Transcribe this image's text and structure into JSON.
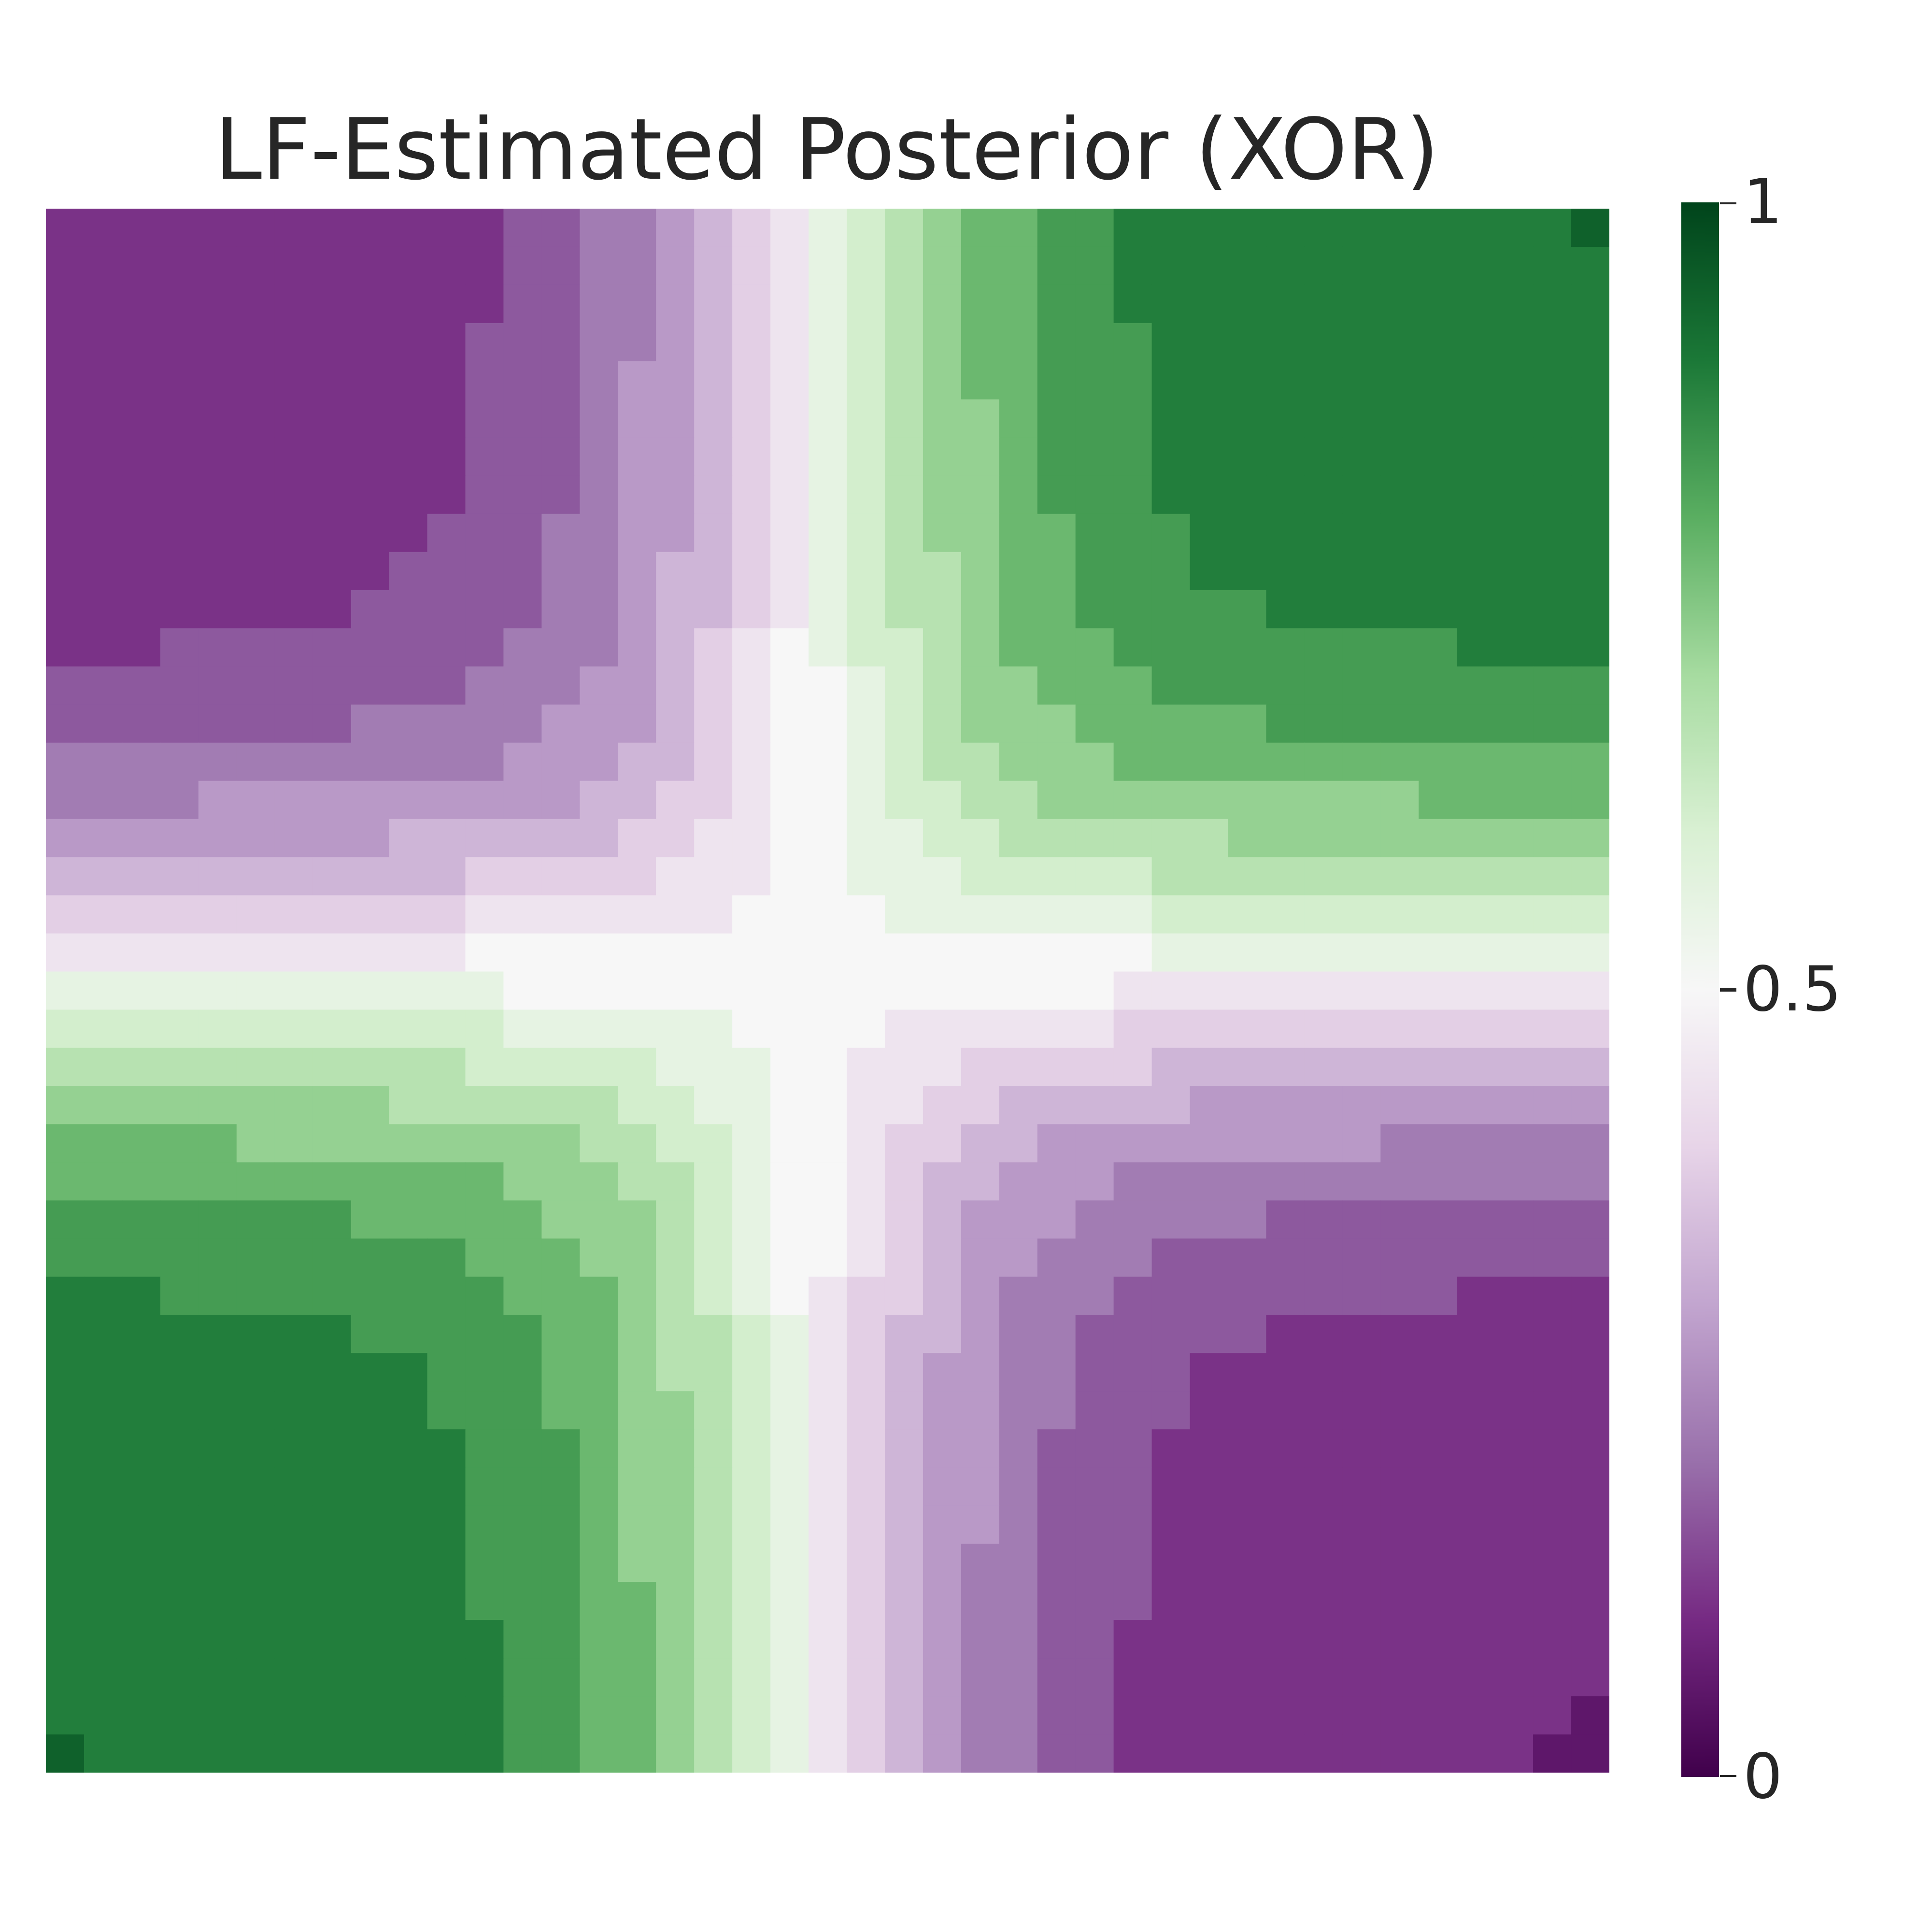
{
  "chart_data": {
    "type": "heatmap",
    "title": "LF-Estimated Posterior (XOR)",
    "xlabel": "",
    "ylabel": "",
    "rows": 41,
    "cols": 41,
    "x_domain": [
      -2,
      2
    ],
    "y_domain": [
      -2,
      2
    ],
    "value_range": [
      0,
      1
    ],
    "colormap": "PRGn",
    "colormap_stops": [
      "#40004b",
      "#762a83",
      "#9970ab",
      "#c2a5cf",
      "#e7d4e8",
      "#f7f7f7",
      "#d9f0d3",
      "#a6dba0",
      "#5aae61",
      "#1b7837",
      "#00441b"
    ],
    "colorbar": {
      "ticks": [
        1,
        0.5,
        0
      ],
      "tick_labels": [
        "1",
        "0.5",
        "0"
      ]
    },
    "grid": false,
    "description_of_values": "posterior approximately follows XOR pattern: top-left and bottom-right quadrants low (purple), top-right and bottom-left quadrants high (green)"
  }
}
